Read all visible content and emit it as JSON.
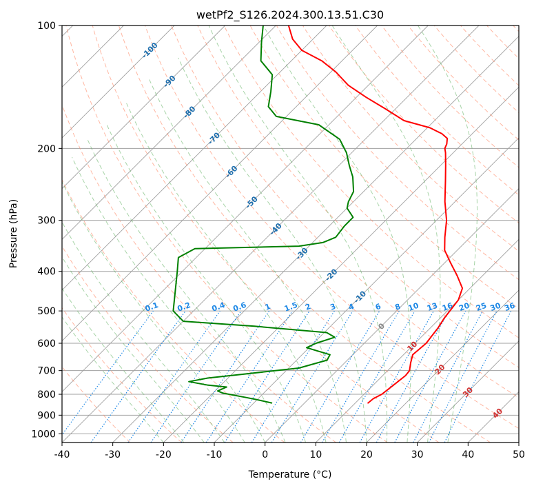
{
  "chart_data": {
    "type": "line",
    "title": "wetPf2_S126.2024.300.13.51.C30",
    "xlabel": "Temperature (°C)",
    "ylabel": "Pressure (hPa)",
    "xlim": [
      -40,
      50
    ],
    "ylim_pressure": [
      1050,
      100
    ],
    "y_scale": "log",
    "skew": "skew-T log-P",
    "grid": true,
    "x_ticks": [
      "-40",
      "-30",
      "-20",
      "-10",
      "0",
      "10",
      "20",
      "30",
      "40",
      "50"
    ],
    "y_ticks": [
      "100",
      "200",
      "300",
      "400",
      "500",
      "600",
      "700",
      "800",
      "900",
      "1000"
    ],
    "colors": {
      "temperature": "#ff0000",
      "dewpoint": "#008000",
      "isotherm": "#a0a0a0",
      "dry_adiabat": "#ff9070",
      "moist_adiabat": "#60b060",
      "mixing_ratio": "#1e88e5",
      "isotherm_label": "#1f6fae",
      "adiabat_label": "#d03030"
    },
    "series": [
      {
        "key": "temperature",
        "points": [
          [
            12.5,
            840
          ],
          [
            12.7,
            820
          ],
          [
            13.5,
            800
          ],
          [
            14.0,
            760
          ],
          [
            14.5,
            720
          ],
          [
            14.3,
            700
          ],
          [
            13.0,
            670
          ],
          [
            11.8,
            640
          ],
          [
            12.2,
            600
          ],
          [
            11.5,
            550
          ],
          [
            10.8,
            520
          ],
          [
            10.5,
            500
          ],
          [
            10.0,
            470
          ],
          [
            8.5,
            440
          ],
          [
            5.0,
            410
          ],
          [
            1.0,
            380
          ],
          [
            -2.5,
            355
          ],
          [
            -5.0,
            330
          ],
          [
            -8.0,
            300
          ],
          [
            -12.0,
            270
          ],
          [
            -16.0,
            240
          ],
          [
            -19.0,
            220
          ],
          [
            -21.5,
            205
          ],
          [
            -22.5,
            200
          ],
          [
            -23.0,
            195
          ],
          [
            -24.0,
            189
          ],
          [
            -26.0,
            184
          ],
          [
            -29.5,
            178
          ],
          [
            -36.0,
            171
          ],
          [
            -42.0,
            160
          ],
          [
            -48.0,
            150
          ],
          [
            -54.0,
            140
          ],
          [
            -59.0,
            130
          ],
          [
            -64.0,
            122
          ],
          [
            -70.0,
            115
          ],
          [
            -74.0,
            108
          ],
          [
            -77.5,
            100
          ]
        ]
      },
      {
        "key": "dewpoint",
        "points": [
          [
            -6.5,
            840
          ],
          [
            -10.0,
            825
          ],
          [
            -12.5,
            815
          ],
          [
            -18.0,
            795
          ],
          [
            -19.5,
            785
          ],
          [
            -18.5,
            768
          ],
          [
            -22.5,
            760
          ],
          [
            -27.0,
            745
          ],
          [
            -24.0,
            730
          ],
          [
            -18.0,
            715
          ],
          [
            -8.0,
            690
          ],
          [
            -4.0,
            660
          ],
          [
            -4.5,
            640
          ],
          [
            -10.5,
            615
          ],
          [
            -9.5,
            600
          ],
          [
            -7.0,
            580
          ],
          [
            -9.5,
            565
          ],
          [
            -25.0,
            545
          ],
          [
            -40.0,
            530
          ],
          [
            -44.0,
            500
          ],
          [
            -51.0,
            400
          ],
          [
            -53.5,
            370
          ],
          [
            -52.0,
            352
          ],
          [
            -32.0,
            347
          ],
          [
            -28.0,
            340
          ],
          [
            -26.5,
            330
          ],
          [
            -27.0,
            310
          ],
          [
            -27.0,
            295
          ],
          [
            -30.0,
            280
          ],
          [
            -31.0,
            270
          ],
          [
            -32.0,
            255
          ],
          [
            -35.0,
            235
          ],
          [
            -38.0,
            220
          ],
          [
            -41.0,
            205
          ],
          [
            -45.0,
            190
          ],
          [
            -52.0,
            175
          ],
          [
            -62.0,
            167
          ],
          [
            -65.5,
            158
          ],
          [
            -68.0,
            145
          ],
          [
            -71.0,
            132
          ],
          [
            -76.0,
            122
          ],
          [
            -79.5,
            110
          ],
          [
            -82.5,
            100
          ]
        ]
      }
    ],
    "isotherm_labels": [
      "-100",
      "-90",
      "-80",
      "-70",
      "-60",
      "-50",
      "-40",
      "-30",
      "-20",
      "-10",
      "0"
    ],
    "adiabat_labels": [
      "0",
      "10",
      "20",
      "30",
      "40"
    ],
    "mixing_ratio_labels": [
      "0.1",
      "0.2",
      "0.4",
      "0.6",
      "1",
      "1.5",
      "2",
      "3",
      "4",
      "6",
      "8",
      "10",
      "13",
      "16",
      "20",
      "25",
      "30",
      "36"
    ]
  }
}
